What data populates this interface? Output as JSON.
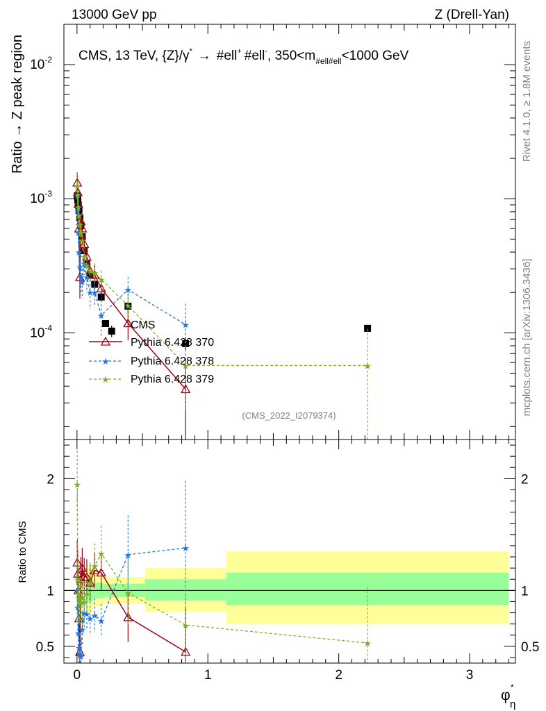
{
  "header": {
    "left": "13000 GeV pp",
    "right": "Z (Drell-Yan)"
  },
  "side_labels": {
    "rivet": "Rivet 4.1.0, ≥ 1.8M events",
    "mcplots": "mcplots.cern.ch [arXiv:1306.3436]"
  },
  "colors": {
    "cms": "#000000",
    "p370": "#a00014",
    "p378": "#1e78dc",
    "p379": "#78b41e",
    "band_inner": "#99ff99",
    "band_outer": "#ffff99"
  },
  "chart_data": [
    {
      "type": "scatter",
      "panel": "main",
      "title": "CMS, 13 TeV, {Z}/γ* → #ell⁺ #ell⁻, 350<m_{#ell#ell}<1000 GeV",
      "title_parts": {
        "pre": "CMS, 13 TeV, {Z}/",
        "gamma": "γ",
        "star": "*",
        "arrow": "→",
        "lep1": "#ell",
        "plus": "+",
        "lep2": "#ell",
        "minus": "-",
        "mid": ", 350<m",
        "sub": "#ell#ell",
        "post": "<1000 GeV"
      },
      "ylabel": "Ratio → Z peak region",
      "yscale": "log",
      "xlim": [
        -0.1,
        3.35
      ],
      "ylim": [
        1.6e-05,
        0.02
      ],
      "yticks": [
        {
          "value": 0.0001,
          "base": "10",
          "exp": "-4"
        },
        {
          "value": 0.001,
          "base": "10",
          "exp": "-3"
        },
        {
          "value": 0.01,
          "base": "10",
          "exp": "-2"
        }
      ],
      "watermark": "(CMS_2022_I2079374)",
      "legend_position": "middle-left",
      "series": [
        {
          "name": "CMS",
          "style": "square",
          "x": [
            0.002,
            0.006,
            0.01,
            0.015,
            0.022,
            0.03,
            0.04,
            0.055,
            0.075,
            0.1,
            0.135,
            0.185,
            0.265,
            0.39,
            0.83,
            2.22
          ],
          "y": [
            0.00105,
            0.00098,
            0.0009,
            0.00082,
            0.00072,
            0.00063,
            0.00052,
            0.00041,
            0.00033,
            0.00027,
            0.00023,
            0.000185,
            0.000103,
            0.000158,
            8.3e-05,
            0.000108
          ],
          "yerr": [
            8e-05,
            8e-05,
            7e-05,
            6e-05,
            6e-05,
            5e-05,
            4e-05,
            3e-05,
            3e-05,
            2e-05,
            2e-05,
            1.5e-05,
            1e-05,
            1.5e-05,
            1e-05,
            5e-06
          ]
        },
        {
          "name": "Pythia 6.428 370",
          "style": "triangle",
          "x": [
            0.002,
            0.006,
            0.01,
            0.015,
            0.022,
            0.03,
            0.04,
            0.055,
            0.075,
            0.1,
            0.135,
            0.185,
            0.39,
            0.83
          ],
          "y": [
            0.00132,
            0.00112,
            0.00092,
            0.0006,
            0.00026,
            0.00068,
            0.0006,
            0.00046,
            0.00037,
            0.00029,
            0.00027,
            0.000215,
            0.000118,
            3.8e-05
          ],
          "yerr": [
            0.00025,
            0.0002,
            0.00018,
            0.00012,
            8e-05,
            0.00012,
            0.0001,
            8e-05,
            6e-05,
            5e-05,
            5e-05,
            4e-05,
            3e-05,
            2.5e-05
          ]
        },
        {
          "name": "Pythia 6.428 378",
          "style": "star",
          "x": [
            0.002,
            0.006,
            0.01,
            0.015,
            0.022,
            0.03,
            0.04,
            0.055,
            0.075,
            0.1,
            0.135,
            0.185,
            0.39,
            0.83
          ],
          "y": [
            0.00105,
            0.00082,
            0.00056,
            0.0004,
            0.00031,
            0.00026,
            0.00024,
            0.00033,
            0.00026,
            0.0002,
            0.0002,
            0.000135,
            0.00021,
            0.000115
          ],
          "yerr": [
            0.0002,
            0.00015,
            0.00012,
            0.0001,
            8e-05,
            6e-05,
            6e-05,
            6e-05,
            5e-05,
            5e-05,
            4e-05,
            4e-05,
            5e-05,
            5e-05
          ]
        },
        {
          "name": "Pythia 6.428 379",
          "style": "star",
          "x": [
            0.002,
            0.006,
            0.01,
            0.015,
            0.022,
            0.03,
            0.04,
            0.055,
            0.075,
            0.1,
            0.135,
            0.185,
            0.39,
            0.83,
            2.22
          ],
          "y": [
            0.00125,
            0.00108,
            0.00087,
            0.00075,
            0.00064,
            0.00056,
            0.00049,
            0.00037,
            0.00032,
            0.00029,
            0.00028,
            0.00025,
            0.00016,
            5.7e-05,
            5.7e-05
          ],
          "yerr": [
            0.0003,
            0.00025,
            0.0002,
            0.00015,
            0.00012,
            0.0001,
            8e-05,
            7e-05,
            6e-05,
            5e-05,
            5e-05,
            4e-05,
            4e-05,
            3e-05,
            5e-05
          ]
        }
      ]
    },
    {
      "type": "scatter",
      "panel": "ratio",
      "ylabel": "Ratio to CMS",
      "xlabel_main": "φ",
      "xlabel_sup": "*",
      "xlabel_sub": "η",
      "xlim": [
        -0.1,
        3.35
      ],
      "ylim": [
        0.35,
        2.35
      ],
      "yticks": [
        0.5,
        1,
        2
      ],
      "ytick_labels": [
        "0.5",
        "1",
        "2"
      ],
      "xticks": [
        0,
        1,
        2,
        3
      ],
      "xtick_labels": [
        "0",
        "1",
        "2",
        "3"
      ],
      "bands": [
        {
          "x0": 0.07,
          "x1": 0.12,
          "inner": [
            0.9,
            1.1
          ],
          "outer": [
            0.8,
            1.2
          ]
        },
        {
          "x0": 0.12,
          "x1": 0.2,
          "inner": [
            0.93,
            1.07
          ],
          "outer": [
            0.86,
            1.14
          ]
        },
        {
          "x0": 0.2,
          "x1": 0.52,
          "inner": [
            0.94,
            1.06
          ],
          "outer": [
            0.88,
            1.12
          ]
        },
        {
          "x0": 0.52,
          "x1": 1.14,
          "inner": [
            0.91,
            1.1
          ],
          "outer": [
            0.81,
            1.2
          ]
        },
        {
          "x0": 1.14,
          "x1": 3.3,
          "inner": [
            0.87,
            1.16
          ],
          "outer": [
            0.7,
            1.35
          ]
        }
      ],
      "series": [
        {
          "name": "Pythia 6.428 370",
          "x": [
            0.002,
            0.006,
            0.01,
            0.015,
            0.022,
            0.03,
            0.04,
            0.055,
            0.075,
            0.1,
            0.135,
            0.185,
            0.39,
            0.83
          ],
          "y": [
            1.25,
            1.15,
            1.0,
            0.75,
            0.45,
            1.1,
            1.2,
            1.12,
            1.12,
            1.07,
            1.18,
            1.16,
            0.76,
            0.45
          ],
          "yerr": [
            0.2,
            0.2,
            0.2,
            0.2,
            0.2,
            0.2,
            0.18,
            0.17,
            0.16,
            0.16,
            0.16,
            0.16,
            0.22,
            0.4
          ]
        },
        {
          "name": "Pythia 6.428 378",
          "x": [
            0.002,
            0.006,
            0.01,
            0.015,
            0.022,
            0.03,
            0.04,
            0.055,
            0.075,
            0.1,
            0.135,
            0.185,
            0.39,
            0.83
          ],
          "y": [
            1.0,
            0.85,
            0.62,
            0.49,
            0.43,
            0.41,
            0.65,
            0.8,
            0.79,
            0.75,
            0.78,
            0.73,
            1.32,
            1.38
          ],
          "yerr": [
            0.25,
            0.22,
            0.2,
            0.18,
            0.18,
            0.15,
            0.15,
            0.15,
            0.15,
            0.15,
            0.15,
            0.15,
            0.35,
            0.6
          ]
        },
        {
          "name": "Pythia 6.428 379",
          "x": [
            0.002,
            0.006,
            0.01,
            0.015,
            0.022,
            0.03,
            0.04,
            0.055,
            0.075,
            0.1,
            0.135,
            0.185,
            0.39,
            0.83,
            2.22
          ],
          "y": [
            1.95,
            1.1,
            0.97,
            0.92,
            0.89,
            0.89,
            0.94,
            0.9,
            0.97,
            1.07,
            1.22,
            1.33,
            0.98,
            0.69,
            0.53
          ],
          "yerr": [
            0.3,
            0.28,
            0.25,
            0.22,
            0.2,
            0.2,
            0.18,
            0.18,
            0.18,
            0.18,
            0.2,
            0.25,
            0.3,
            0.35,
            0.5
          ]
        }
      ]
    }
  ]
}
